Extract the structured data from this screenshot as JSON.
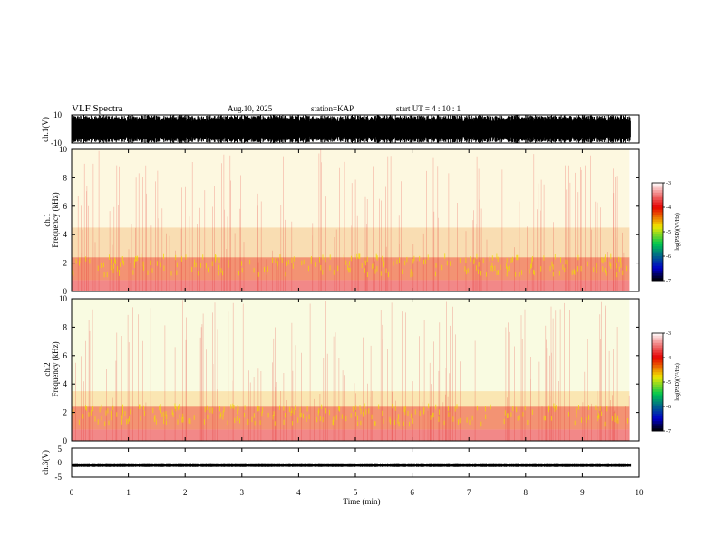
{
  "header": {
    "title": "VLF Spectra",
    "date": "Aug.10, 2025",
    "station": "station=KAP",
    "start": "start UT = 4 : 10 : 1"
  },
  "chart_data": [
    {
      "type": "line",
      "title": "ch.1 waveform",
      "ylabel": "ch.1(V)",
      "ylim": [
        -10,
        10
      ],
      "yticks": [
        10,
        -10
      ],
      "xlim": [
        0,
        10
      ],
      "description_values": {
        "envelope_amplitude_V": 9.8
      }
    },
    {
      "type": "heatmap",
      "title": "ch.1 spectrogram",
      "ylabel_line1": "ch.1",
      "ylabel_line2": "Frequency (kHz)",
      "xlim": [
        0,
        10
      ],
      "ylim": [
        0,
        10
      ],
      "yticks": [
        0,
        2,
        4,
        6,
        8,
        10
      ],
      "data_end_min": 9.83,
      "bands": [
        {
          "fmin": 0.0,
          "fmax": 0.8,
          "level": -3.6
        },
        {
          "fmin": 0.8,
          "fmax": 2.4,
          "level": -4.2
        },
        {
          "fmin": 2.4,
          "fmax": 4.5,
          "level": -4.5
        },
        {
          "fmin": 4.5,
          "fmax": 10.0,
          "level": -4.7
        }
      ],
      "colorbar": {
        "label": "log(PSD)(V²/Hz)",
        "min": -7,
        "max": -3,
        "ticks": [
          -3,
          -4,
          -5,
          -6,
          -7
        ]
      }
    },
    {
      "type": "heatmap",
      "title": "ch.2 spectrogram",
      "ylabel_line1": "ch.2",
      "ylabel_line2": "Frequency (kHz)",
      "xlim": [
        0,
        10
      ],
      "ylim": [
        0,
        10
      ],
      "yticks": [
        0,
        2,
        4,
        6,
        8,
        10
      ],
      "data_end_min": 9.83,
      "bands": [
        {
          "fmin": 0.0,
          "fmax": 0.8,
          "level": -3.6
        },
        {
          "fmin": 0.8,
          "fmax": 2.4,
          "level": -4.2
        },
        {
          "fmin": 2.4,
          "fmax": 3.5,
          "level": -4.6
        },
        {
          "fmin": 3.5,
          "fmax": 10.0,
          "level": -4.9
        }
      ],
      "colorbar": {
        "label": "log(PSD)(V²/Hz)",
        "min": -7,
        "max": -3,
        "ticks": [
          -3,
          -4,
          -5,
          -6,
          -7
        ]
      }
    },
    {
      "type": "line",
      "title": "ch.3 waveform",
      "ylabel": "ch.3(V)",
      "ylim": [
        -5,
        5
      ],
      "yticks": [
        5,
        0,
        -5
      ],
      "xlim": [
        0,
        10
      ],
      "description_values": {
        "baseline_V": -1.0,
        "amplitude_V": 0.5
      }
    }
  ],
  "xaxis": {
    "label": "Time (min)",
    "ticks": [
      "0",
      "1",
      "2",
      "3",
      "4",
      "5",
      "6",
      "7",
      "8",
      "9",
      "10"
    ]
  },
  "colors": {
    "axis": "#000000",
    "background": "#ffffff"
  }
}
